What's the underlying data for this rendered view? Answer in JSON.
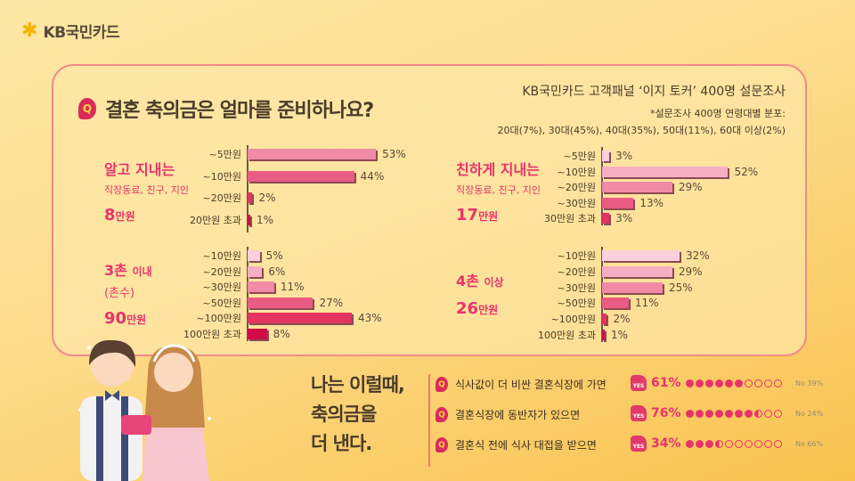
{
  "brand": {
    "logo_text": "KB국민카드",
    "logo_mark": "✱"
  },
  "title": "결혼 축의금은 얼마를 준비하나요?",
  "survey": {
    "line1": "KB국민카드 고객패널 ‘이지 토커’ 400명 설문조사",
    "line2": "*설문조사 400명 연령대별 분포:",
    "line3": "20대(7%), 30대(45%), 40대(35%), 50대(11%), 60대 이상(2%)"
  },
  "colors": [
    "#f9d0dc",
    "#f5aec4",
    "#f08aa6",
    "#ea5c84",
    "#e33462",
    "#d10a48"
  ],
  "chart_data": [
    {
      "type": "bar",
      "orientation": "horizontal",
      "group": "알고 지내는",
      "subgroup": "직장동료, 친구, 지인",
      "average_value": "8",
      "average_unit": "만원",
      "categories": [
        "~5만원",
        "~10만원",
        "~20만원",
        "20만원 초과"
      ],
      "values": [
        53,
        44,
        2,
        1
      ],
      "unit": "%"
    },
    {
      "type": "bar",
      "orientation": "horizontal",
      "group": "친하게 지내는",
      "subgroup": "직장동료, 친구, 지인",
      "average_value": "17",
      "average_unit": "만원",
      "categories": [
        "~5만원",
        "~10만원",
        "~20만원",
        "~30만원",
        "30만원 초과"
      ],
      "values": [
        3,
        52,
        29,
        13,
        3
      ],
      "unit": "%"
    },
    {
      "type": "bar",
      "orientation": "horizontal",
      "group": "3촌",
      "group_suffix": "이내",
      "subgroup": "(촌수)",
      "average_value": "90",
      "average_unit": "만원",
      "categories": [
        "~10만원",
        "~20만원",
        "~30만원",
        "~50만원",
        "~100만원",
        "100만원 초과"
      ],
      "values": [
        5,
        6,
        11,
        27,
        43,
        8
      ],
      "unit": "%"
    },
    {
      "type": "bar",
      "orientation": "horizontal",
      "group": "4촌",
      "group_suffix": "이상",
      "subgroup": "",
      "average_value": "26",
      "average_unit": "만원",
      "categories": [
        "~10만원",
        "~20만원",
        "~30만원",
        "~50만원",
        "~100만원",
        "100만원 초과"
      ],
      "values": [
        32,
        29,
        25,
        11,
        2,
        1
      ],
      "unit": "%"
    }
  ],
  "bottom": {
    "title_lines": [
      "나는 이럴때,",
      "축의금을",
      "더 낸다."
    ],
    "items": [
      {
        "text": "식사값이 더 비싼 결혼식장에 가면",
        "yes_label": "YES",
        "yes": 61,
        "yes_text": "61%",
        "no_text": "No 39%"
      },
      {
        "text": "결혼식장에 동반자가 있으면",
        "yes_label": "YES",
        "yes": 76,
        "yes_text": "76%",
        "no_text": "No 24%"
      },
      {
        "text": "결혼식 전에 식사 대접을 받으면",
        "yes_label": "YES",
        "yes": 34,
        "yes_text": "34%",
        "no_text": "No 66%"
      }
    ]
  }
}
